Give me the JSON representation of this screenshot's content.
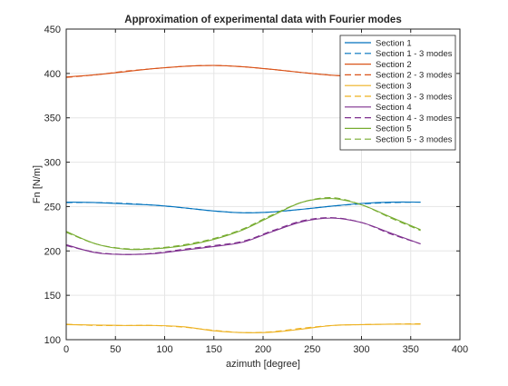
{
  "chart_data": {
    "type": "line",
    "title": "Approximation of experimental data with Fourier modes",
    "xlabel": "azimuth [degree]",
    "ylabel": "Fn [N/m]",
    "xlim": [
      0,
      400
    ],
    "ylim": [
      100,
      450
    ],
    "xticks": [
      0,
      50,
      100,
      150,
      200,
      250,
      300,
      350,
      400
    ],
    "yticks": [
      100,
      150,
      200,
      250,
      300,
      350,
      400,
      450
    ],
    "grid": true,
    "legend_position": "top-right",
    "x": [
      0,
      30,
      60,
      90,
      120,
      150,
      180,
      210,
      240,
      270,
      300,
      330,
      360
    ],
    "series": [
      {
        "name": "Section 1",
        "color": "#0072BD",
        "style": "solid",
        "values": [
          255,
          254.5,
          253,
          251.5,
          248.5,
          245,
          243,
          244,
          247,
          250.5,
          253.5,
          255,
          255
        ]
      },
      {
        "name": "Section 1 - 3 modes",
        "color": "#0072BD",
        "style": "dashed",
        "values": [
          254.5,
          254.5,
          253.5,
          251.5,
          248.5,
          245,
          243,
          244,
          247,
          250.5,
          253,
          254.5,
          255
        ]
      },
      {
        "name": "Section 2",
        "color": "#D95319",
        "style": "solid",
        "values": [
          396,
          398.5,
          402,
          405.5,
          408,
          409,
          407.5,
          404.5,
          401,
          398,
          396.5,
          396,
          396
        ]
      },
      {
        "name": "Section 2 - 3 modes",
        "color": "#D95319",
        "style": "dashed",
        "values": [
          395.5,
          398.5,
          402.5,
          405.5,
          408,
          409,
          407.5,
          404.5,
          401,
          398,
          396.5,
          395.5,
          395.5
        ]
      },
      {
        "name": "Section 3",
        "color": "#EDB120",
        "style": "solid",
        "values": [
          117,
          116.5,
          116,
          116,
          114.5,
          110,
          108,
          108.5,
          112,
          116,
          117,
          117.5,
          117.5
        ]
      },
      {
        "name": "Section 3 - 3 modes",
        "color": "#EDB120",
        "style": "dashed",
        "values": [
          117.5,
          116,
          116,
          116,
          114,
          110.5,
          108,
          109,
          113,
          116,
          117,
          117.5,
          118
        ]
      },
      {
        "name": "Section 4",
        "color": "#7E2F8E",
        "style": "solid",
        "values": [
          207,
          198,
          196,
          197,
          201,
          205,
          210,
          222,
          233,
          237,
          232,
          220,
          208
        ]
      },
      {
        "name": "Section 4 - 3 modes",
        "color": "#7E2F8E",
        "style": "dashed",
        "values": [
          206,
          198.5,
          196,
          197.5,
          202,
          206,
          211,
          223,
          234,
          237.5,
          232,
          219,
          208
        ]
      },
      {
        "name": "Section 5",
        "color": "#77AC30",
        "style": "solid",
        "values": [
          222,
          208,
          202,
          202.5,
          206,
          213,
          224,
          240,
          255,
          259,
          252,
          238,
          224
        ]
      },
      {
        "name": "Section 5 - 3 modes",
        "color": "#77AC30",
        "style": "dashed",
        "values": [
          221,
          208,
          202.5,
          203,
          207,
          214,
          225,
          241,
          255,
          260,
          252,
          237,
          223
        ]
      }
    ]
  }
}
